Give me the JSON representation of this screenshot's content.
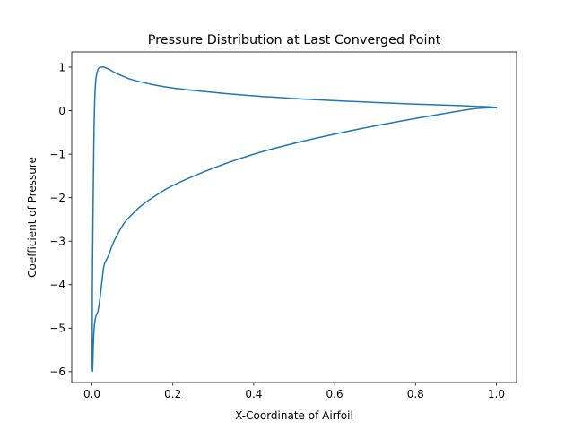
{
  "chart_data": {
    "type": "line",
    "title": "Pressure Distribution at Last Converged Point",
    "xlabel": "X-Coordinate of Airfoil",
    "ylabel": "Coefficient of Pressure",
    "xlim": [
      -0.05,
      1.05
    ],
    "ylim": [
      -6.25,
      1.35
    ],
    "xticks": [
      0.0,
      0.2,
      0.4,
      0.6,
      0.8,
      1.0
    ],
    "xtick_labels": [
      "0.0",
      "0.2",
      "0.4",
      "0.6",
      "0.8",
      "1.0"
    ],
    "yticks": [
      -6,
      -5,
      -4,
      -3,
      -2,
      -1,
      0,
      1
    ],
    "ytick_labels": [
      "−6",
      "−5",
      "−4",
      "−3",
      "−2",
      "−1",
      "0",
      "1"
    ],
    "grid": false,
    "legend": "none",
    "series": [
      {
        "color": "#1f77b4",
        "x": [
          1.0,
          0.95,
          0.9,
          0.8,
          0.7,
          0.6,
          0.5,
          0.4,
          0.3,
          0.2,
          0.15,
          0.12,
          0.1,
          0.08,
          0.06,
          0.05,
          0.04,
          0.03,
          0.025,
          0.02,
          0.015,
          0.01,
          0.007,
          0.005,
          0.003,
          0.002,
          0.001,
          0.0005,
          0.001,
          0.003,
          0.005,
          0.007,
          0.01,
          0.015,
          0.02,
          0.025,
          0.03,
          0.04,
          0.05,
          0.06,
          0.08,
          0.1,
          0.15,
          0.2,
          0.3,
          0.4,
          0.5,
          0.6,
          0.7,
          0.8,
          0.9,
          0.95,
          0.98,
          1.0
        ],
        "y": [
          0.07,
          0.05,
          -0.02,
          -0.18,
          -0.35,
          -0.54,
          -0.75,
          -1.0,
          -1.32,
          -1.72,
          -2.0,
          -2.2,
          -2.38,
          -2.58,
          -2.9,
          -3.1,
          -3.35,
          -3.55,
          -3.9,
          -4.3,
          -4.6,
          -4.72,
          -4.85,
          -5.05,
          -5.5,
          -5.85,
          -5.97,
          -5.5,
          -4.0,
          -2.0,
          -0.5,
          0.3,
          0.75,
          0.95,
          1.0,
          1.0,
          1.0,
          0.96,
          0.91,
          0.86,
          0.78,
          0.71,
          0.6,
          0.52,
          0.42,
          0.34,
          0.28,
          0.23,
          0.19,
          0.15,
          0.12,
          0.1,
          0.09,
          0.07
        ]
      }
    ]
  }
}
